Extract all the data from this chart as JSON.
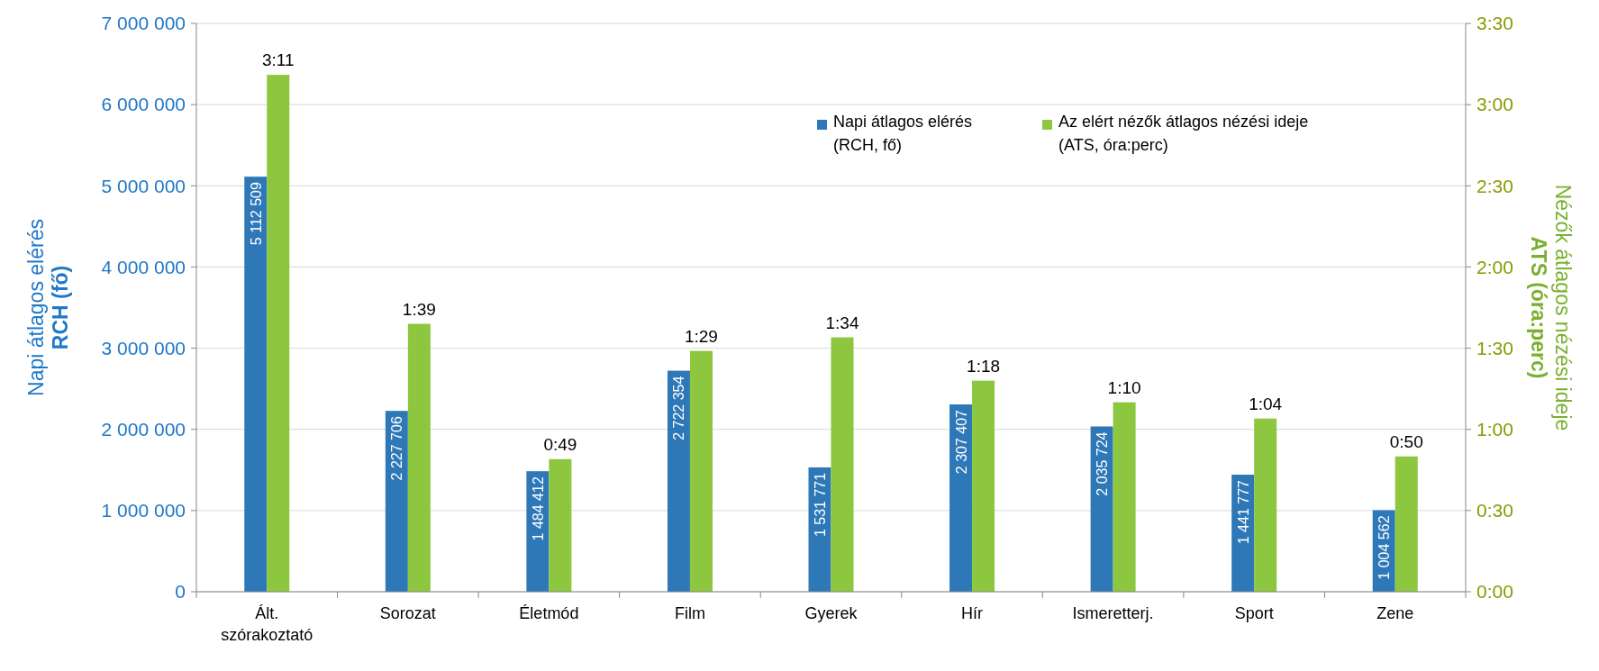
{
  "chart_data": {
    "type": "bar",
    "categories": [
      "Ált. szórakoztató",
      "Sorozat",
      "Életmód",
      "Film",
      "Gyerek",
      "Hír",
      "Ismeretterj.",
      "Sport",
      "Zene"
    ],
    "ylabel": "Napi átlagos elérés\nRCH (fő)",
    "y2label": "Nézők átlagos nézési ideje\nATS (óra:perc)",
    "series": [
      {
        "name": "Napi átlagos elérés\n(RCH, fő)",
        "color": "#2e78b7",
        "values": [
          5112509,
          2227706,
          1484412,
          2722354,
          1531771,
          2307407,
          2035724,
          1441777,
          1004562
        ],
        "value_labels": [
          "5 112 509",
          "2 227 706",
          "1 484 412",
          "2 722 354",
          "1 531 771",
          "2 307 407",
          "2 035 724",
          "1 441 777",
          "1 004 562"
        ]
      },
      {
        "name": "Az elért nézők átlagos nézési ideje\n(ATS, óra:perc)",
        "color": "#8dc63f",
        "axis": "y2",
        "values": [
          191,
          99,
          49,
          89,
          94,
          78,
          70,
          64,
          50
        ],
        "value_labels": [
          "3:11",
          "1:39",
          "0:49",
          "1:29",
          "1:34",
          "1:18",
          "1:10",
          "1:04",
          "0:50"
        ]
      }
    ],
    "ylim": [
      0,
      7000000
    ],
    "yticks": [
      {
        "value": 0,
        "label": "0"
      },
      {
        "value": 1000000,
        "label": "1 000 000"
      },
      {
        "value": 2000000,
        "label": "2 000 000"
      },
      {
        "value": 3000000,
        "label": "3 000 000"
      },
      {
        "value": 4000000,
        "label": "4 000 000"
      },
      {
        "value": 5000000,
        "label": "5 000 000"
      },
      {
        "value": 6000000,
        "label": "6 000 000"
      },
      {
        "value": 7000000,
        "label": "7 000 000"
      }
    ],
    "y2lim": [
      0,
      210
    ],
    "y2ticks": [
      {
        "value": 0,
        "label": "0:00"
      },
      {
        "value": 30,
        "label": "0:30"
      },
      {
        "value": 60,
        "label": "1:00"
      },
      {
        "value": 90,
        "label": "1:30"
      },
      {
        "value": 120,
        "label": "2:00"
      },
      {
        "value": 150,
        "label": "2:30"
      },
      {
        "value": 180,
        "label": "3:00"
      },
      {
        "value": 210,
        "label": "3:30"
      }
    ],
    "grid": "y",
    "legend": "top right"
  }
}
